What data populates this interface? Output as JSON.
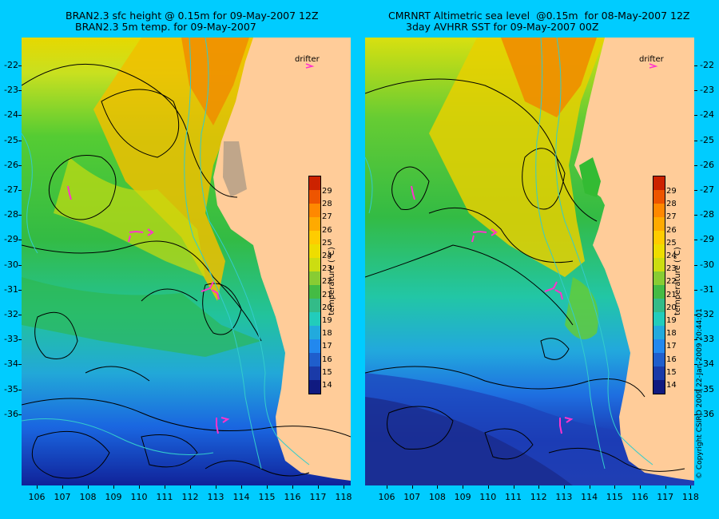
{
  "left": {
    "title_line1": "BRAN2.3 sfc height @ 0.15m for 09-May-2007 12Z",
    "title_line2": "BRAN2.3 5m temp. for 09-May-2007"
  },
  "right": {
    "title_line1": "CMRNRT Altimetric sea level  @0.15m  for 08-May-2007 12Z",
    "title_line2": "3day AVHRR SST for 09-May-2007 00Z"
  },
  "lat_labels": [
    "-22",
    "-23",
    "-24",
    "-25",
    "-26",
    "-27",
    "-28",
    "-29",
    "-30",
    "-31",
    "-32",
    "-33",
    "-34",
    "-35",
    "-36"
  ],
  "lon_labels": [
    "106",
    "107",
    "108",
    "109",
    "110",
    "111",
    "112",
    "113",
    "114",
    "115",
    "116",
    "117",
    "118"
  ],
  "colorbar": {
    "title": "temperature (°C)",
    "labels": [
      "29",
      "28",
      "27",
      "26",
      "25",
      "24",
      "23",
      "22",
      "21",
      "20",
      "19",
      "18",
      "17",
      "16",
      "15",
      "14"
    ]
  },
  "drifter_label": "drifter",
  "copyright": "© Copyright CSIRO 2009   22-Jan-2009 20:44:01",
  "colors": {
    "background": "#00ccff",
    "land": "#ffcc99",
    "drifter": "#ff33cc",
    "contour": "#000000",
    "isobath": "#33cccc"
  }
}
